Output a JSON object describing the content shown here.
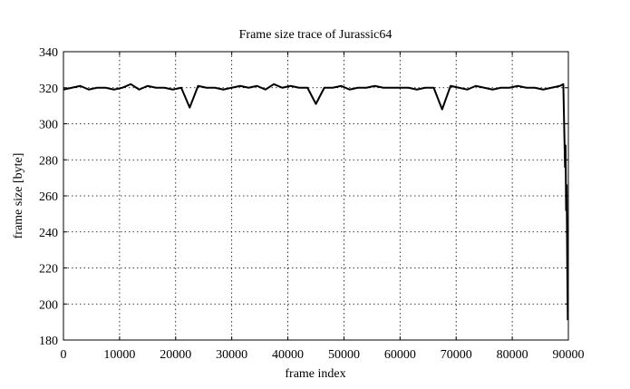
{
  "chart_data": {
    "type": "line",
    "title": "Frame size trace of Jurassic64",
    "xlabel": "frame index",
    "ylabel": "frame size [byte]",
    "color": "#000000",
    "grid": true,
    "x": [
      0,
      1500,
      3000,
      4500,
      6000,
      7500,
      9000,
      10500,
      12000,
      13500,
      15000,
      16500,
      18000,
      19500,
      21000,
      22500,
      24000,
      25500,
      27000,
      28500,
      30000,
      31500,
      33000,
      34500,
      36000,
      37500,
      39000,
      40500,
      42000,
      43500,
      45000,
      46500,
      48000,
      49500,
      51000,
      52500,
      54000,
      55500,
      57000,
      58500,
      60000,
      61500,
      63000,
      64500,
      66000,
      67500,
      69000,
      70500,
      72000,
      73500,
      75000,
      76500,
      78000,
      79500,
      81000,
      82500,
      84000,
      85500,
      87000,
      88500,
      89100,
      89300,
      89400,
      89500,
      89600,
      89700,
      89800,
      89900
    ],
    "values": [
      319,
      320,
      321,
      319,
      320,
      320,
      319,
      320,
      322,
      319,
      321,
      320,
      320,
      319,
      320,
      309,
      321,
      320,
      320,
      319,
      320,
      321,
      320,
      321,
      319,
      322,
      320,
      321,
      320,
      320,
      311,
      320,
      320,
      321,
      319,
      320,
      320,
      321,
      320,
      320,
      320,
      320,
      319,
      320,
      320,
      308,
      321,
      320,
      319,
      321,
      320,
      319,
      320,
      320,
      321,
      320,
      320,
      319,
      320,
      321,
      322,
      292,
      276,
      288,
      252,
      266,
      222,
      191
    ],
    "xlim": [
      0,
      90000
    ],
    "xticks": [
      0,
      10000,
      20000,
      30000,
      40000,
      50000,
      60000,
      70000,
      80000,
      90000
    ],
    "ylim": [
      180,
      340
    ],
    "yticks": [
      180,
      200,
      220,
      240,
      260,
      280,
      300,
      320,
      340
    ]
  }
}
